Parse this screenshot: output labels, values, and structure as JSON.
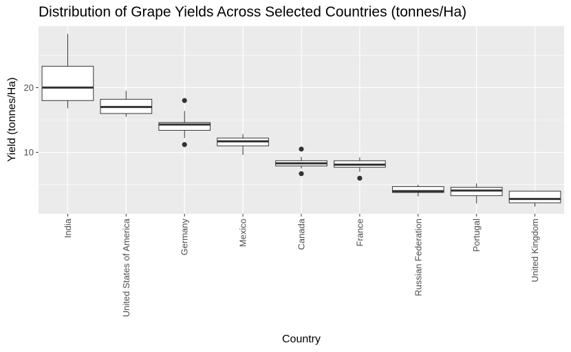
{
  "chart_data": {
    "type": "boxplot",
    "title": "Distribution of Grape Yields Across Selected Countries (tonnes/Ha)",
    "xlabel": "Country",
    "ylabel": "Yield (tonnes/Ha)",
    "ylim": [
      0.5,
      29.5
    ],
    "yticks": [
      10,
      20
    ],
    "grid": true,
    "categories": [
      "India",
      "United States of America",
      "Germany",
      "Mexico",
      "Canada",
      "France",
      "Russian Federation",
      "Portugal",
      "United Kingdom"
    ],
    "boxes": [
      {
        "category": "India",
        "whisker_low": 16.8,
        "q1": 18.0,
        "median": 20.0,
        "q3": 23.3,
        "whisker_high": 28.3,
        "outliers": []
      },
      {
        "category": "United States of America",
        "whisker_low": 15.5,
        "q1": 16.0,
        "median": 17.0,
        "q3": 18.2,
        "whisker_high": 19.5,
        "outliers": []
      },
      {
        "category": "Germany",
        "whisker_low": 12.2,
        "q1": 13.4,
        "median": 14.3,
        "q3": 14.6,
        "whisker_high": 16.4,
        "outliers": [
          18.0,
          11.2
        ]
      },
      {
        "category": "Mexico",
        "whisker_low": 9.6,
        "q1": 11.0,
        "median": 11.7,
        "q3": 12.2,
        "whisker_high": 12.8,
        "outliers": []
      },
      {
        "category": "Canada",
        "whisker_low": 7.5,
        "q1": 7.9,
        "median": 8.3,
        "q3": 8.7,
        "whisker_high": 9.3,
        "outliers": [
          10.5,
          6.7
        ]
      },
      {
        "category": "France",
        "whisker_low": 7.0,
        "q1": 7.7,
        "median": 8.1,
        "q3": 8.7,
        "whisker_high": 9.2,
        "outliers": [
          6.0
        ]
      },
      {
        "category": "Russian Federation",
        "whisker_low": 3.2,
        "q1": 3.8,
        "median": 4.0,
        "q3": 4.7,
        "whisker_high": 5.0,
        "outliers": []
      },
      {
        "category": "Portugal",
        "whisker_low": 2.1,
        "q1": 3.3,
        "median": 4.1,
        "q3": 4.6,
        "whisker_high": 5.2,
        "outliers": []
      },
      {
        "category": "United Kingdom",
        "whisker_low": 1.6,
        "q1": 2.2,
        "median": 2.8,
        "q3": 4.0,
        "whisker_high": 4.0,
        "outliers": []
      }
    ],
    "colors": {
      "panel": "#ebebeb",
      "grid": "#ffffff",
      "box_fill": "#ffffff",
      "box_stroke": "#333333",
      "text": "#4d4d4d"
    }
  }
}
